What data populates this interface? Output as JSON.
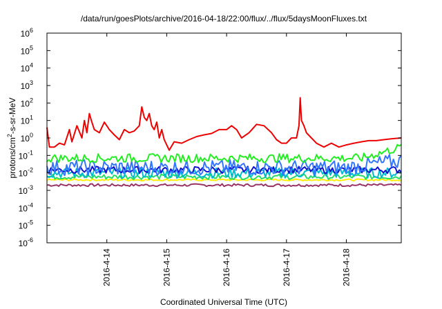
{
  "chart_data": {
    "type": "line",
    "title": "/data/run/goesPlots/archive/2016-04-18/22:00/flux/../flux/5daysMoonFluxes.txt",
    "xlabel": "Coordinated Universal Time (UTC)",
    "ylabel": "protons/cm2-s-sr-MeV",
    "ylabel_parts": {
      "main": "protons/cm",
      "sup": "2",
      "rest": "-s-sr-MeV"
    },
    "y_scale": "log",
    "ylim": [
      1e-06,
      1000000.0
    ],
    "y_tick_labels": [
      {
        "base": "10",
        "exp": "-6"
      },
      {
        "base": "10",
        "exp": "-5"
      },
      {
        "base": "10",
        "exp": "-4"
      },
      {
        "base": "10",
        "exp": "-3"
      },
      {
        "base": "10",
        "exp": "-2"
      },
      {
        "base": "10",
        "exp": "-1"
      },
      {
        "base": "10",
        "exp": "0"
      },
      {
        "base": "10",
        "exp": "1"
      },
      {
        "base": "10",
        "exp": "2"
      },
      {
        "base": "10",
        "exp": "3"
      },
      {
        "base": "10",
        "exp": "4"
      },
      {
        "base": "10",
        "exp": "5"
      },
      {
        "base": "10",
        "exp": "6"
      }
    ],
    "x_tick_labels": [
      "2016-4-14",
      "2016-4-15",
      "2016-4-16",
      "2016-4-17",
      "2016-4-18"
    ],
    "xlim": [
      "2016-04-13 00:00",
      "2016-04-18 22:00"
    ],
    "grid": false,
    "legend": "none",
    "series": [
      {
        "color": "#ee0000",
        "points": [
          [
            "2016-04-13 00:00",
            4
          ],
          [
            "2016-04-13 01:00",
            0.3
          ],
          [
            "2016-04-13 03:00",
            0.3
          ],
          [
            "2016-04-13 05:00",
            0.5
          ],
          [
            "2016-04-13 07:00",
            0.4
          ],
          [
            "2016-04-13 09:00",
            3
          ],
          [
            "2016-04-13 10:00",
            0.6
          ],
          [
            "2016-04-13 12:00",
            5
          ],
          [
            "2016-04-13 14:00",
            1
          ],
          [
            "2016-04-13 15:00",
            10
          ],
          [
            "2016-04-13 16:00",
            2
          ],
          [
            "2016-04-13 17:00",
            25
          ],
          [
            "2016-04-13 18:00",
            8
          ],
          [
            "2016-04-13 19:00",
            3
          ],
          [
            "2016-04-13 21:00",
            2
          ],
          [
            "2016-04-13 23:00",
            8
          ],
          [
            "2016-04-14 01:00",
            3
          ],
          [
            "2016-04-14 03:00",
            1.5
          ],
          [
            "2016-04-14 05:00",
            0.8
          ],
          [
            "2016-04-14 07:00",
            3
          ],
          [
            "2016-04-14 09:00",
            2
          ],
          [
            "2016-04-14 11:00",
            2.5
          ],
          [
            "2016-04-14 13:00",
            5
          ],
          [
            "2016-04-14 14:00",
            60
          ],
          [
            "2016-04-14 15:00",
            15
          ],
          [
            "2016-04-14 16:00",
            10
          ],
          [
            "2016-04-14 17:00",
            25
          ],
          [
            "2016-04-14 18:00",
            5
          ],
          [
            "2016-04-14 19:00",
            3
          ],
          [
            "2016-04-14 20:00",
            8
          ],
          [
            "2016-04-14 21:00",
            1
          ],
          [
            "2016-04-14 22:00",
            3
          ],
          [
            "2016-04-14 23:00",
            0.8
          ],
          [
            "2016-04-15 01:00",
            0.2
          ],
          [
            "2016-04-15 03:00",
            0.6
          ],
          [
            "2016-04-15 06:00",
            0.5
          ],
          [
            "2016-04-15 09:00",
            0.8
          ],
          [
            "2016-04-15 12:00",
            1.2
          ],
          [
            "2016-04-15 15:00",
            1.5
          ],
          [
            "2016-04-15 18:00",
            1.8
          ],
          [
            "2016-04-15 21:00",
            3
          ],
          [
            "2016-04-16 00:00",
            3
          ],
          [
            "2016-04-16 02:00",
            5
          ],
          [
            "2016-04-16 04:00",
            3
          ],
          [
            "2016-04-16 06:00",
            1
          ],
          [
            "2016-04-16 09:00",
            2
          ],
          [
            "2016-04-16 12:00",
            6
          ],
          [
            "2016-04-16 15:00",
            5
          ],
          [
            "2016-04-16 18:00",
            2
          ],
          [
            "2016-04-16 20:00",
            0.8
          ],
          [
            "2016-04-16 22:00",
            0.5
          ],
          [
            "2016-04-17 00:00",
            0.5
          ],
          [
            "2016-04-17 02:00",
            1
          ],
          [
            "2016-04-17 04:00",
            1
          ],
          [
            "2016-04-17 05:00",
            5
          ],
          [
            "2016-04-17 05:30",
            200
          ],
          [
            "2016-04-17 06:00",
            10
          ],
          [
            "2016-04-17 07:00",
            5
          ],
          [
            "2016-04-17 08:00",
            2
          ],
          [
            "2016-04-17 10:00",
            1
          ],
          [
            "2016-04-17 12:00",
            0.5
          ],
          [
            "2016-04-17 15:00",
            0.3
          ],
          [
            "2016-04-17 18:00",
            0.5
          ],
          [
            "2016-04-17 21:00",
            0.3
          ],
          [
            "2016-04-18 00:00",
            0.4
          ],
          [
            "2016-04-18 03:00",
            0.5
          ],
          [
            "2016-04-18 06:00",
            0.6
          ],
          [
            "2016-04-18 09:00",
            0.7
          ],
          [
            "2016-04-18 12:00",
            0.7
          ],
          [
            "2016-04-18 15:00",
            0.8
          ],
          [
            "2016-04-18 18:00",
            0.9
          ],
          [
            "2016-04-18 22:00",
            1.0
          ]
        ]
      },
      {
        "color": "#22ee22",
        "base": 0.07,
        "jitter": 0.5,
        "end": 0.3,
        "end_from": "2016-04-18 06:00"
      },
      {
        "color": "#3377ff",
        "base": 0.02,
        "jitter": 0.9,
        "end": 0.05,
        "end_from": "2016-04-18 00:00"
      },
      {
        "color": "#00bbcc",
        "base": 0.01,
        "jitter": 0.6,
        "end": 0.01,
        "end_from": "2016-04-18 22:00"
      },
      {
        "color": "#1111cc",
        "base": 0.015,
        "jitter": 0.4,
        "end": 0.015,
        "end_from": "2016-04-18 22:00"
      },
      {
        "color": "#22dd66",
        "base": 0.006,
        "jitter": 0.3,
        "end": 0.006,
        "end_from": "2016-04-18 22:00"
      },
      {
        "color": "#ffee00",
        "base": 0.004,
        "jitter": 0.1,
        "end": 0.004,
        "end_from": "2016-04-18 22:00"
      },
      {
        "color": "#993366",
        "base": 0.002,
        "jitter": 0.15,
        "end": 0.002,
        "end_from": "2016-04-18 22:00"
      }
    ]
  }
}
